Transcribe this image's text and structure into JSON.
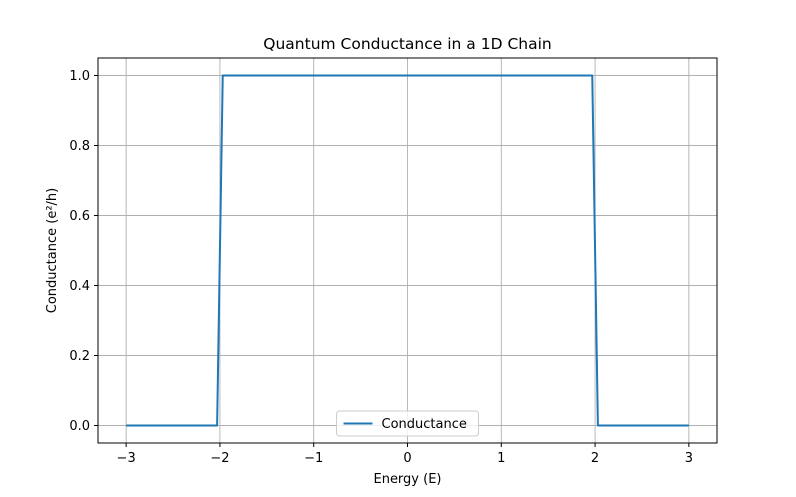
{
  "chart_data": {
    "type": "line",
    "title": "Quantum Conductance in a 1D Chain",
    "xlabel": "Energy (E)",
    "ylabel": "Conductance (e²/h)",
    "xlim": [
      -3.3,
      3.3
    ],
    "ylim": [
      -0.05,
      1.05
    ],
    "xticks": [
      {
        "value": -3,
        "label": "−3"
      },
      {
        "value": -2,
        "label": "−2"
      },
      {
        "value": -1,
        "label": "−1"
      },
      {
        "value": 0,
        "label": "0"
      },
      {
        "value": 1,
        "label": "1"
      },
      {
        "value": 2,
        "label": "2"
      },
      {
        "value": 3,
        "label": "3"
      }
    ],
    "yticks": [
      {
        "value": 0.0,
        "label": "0.0"
      },
      {
        "value": 0.2,
        "label": "0.2"
      },
      {
        "value": 0.4,
        "label": "0.4"
      },
      {
        "value": 0.6,
        "label": "0.6"
      },
      {
        "value": 0.8,
        "label": "0.8"
      },
      {
        "value": 1.0,
        "label": "1.0"
      }
    ],
    "grid": true,
    "legend": "lower-center",
    "series": [
      {
        "name": "Conductance",
        "color": "#1f77b4",
        "x": [
          -3,
          -2.03,
          -1.97,
          1.97,
          2.03,
          3
        ],
        "y": [
          0,
          0,
          1,
          1,
          0,
          0
        ]
      }
    ]
  }
}
